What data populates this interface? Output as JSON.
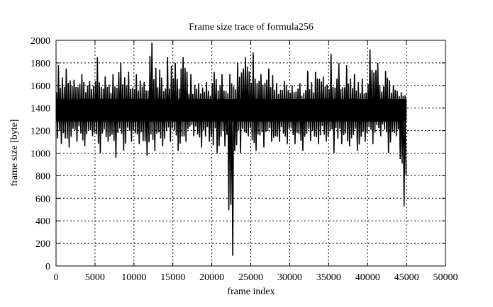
{
  "chart_data": {
    "type": "line",
    "title": "Frame size trace of formula256",
    "xlabel": "frame index",
    "ylabel": "frame size [byte]",
    "xlim": [
      0,
      50000
    ],
    "ylim": [
      0,
      2000
    ],
    "xticks": [
      0,
      5000,
      10000,
      15000,
      20000,
      25000,
      30000,
      35000,
      40000,
      45000,
      50000
    ],
    "yticks": [
      0,
      200,
      400,
      600,
      800,
      1000,
      1200,
      1400,
      1600,
      1800,
      2000
    ],
    "grid": true,
    "line_color": "#000000",
    "bin_size_frames": 1000,
    "envelope_bins_start": [
      0,
      1000,
      2000,
      3000,
      4000,
      5000,
      6000,
      7000,
      8000,
      9000,
      10000,
      11000,
      12000,
      13000,
      14000,
      15000,
      16000,
      17000,
      18000,
      19000,
      20000,
      21000,
      22000,
      23000,
      24000,
      25000,
      26000,
      27000,
      28000,
      29000,
      30000,
      31000,
      32000,
      33000,
      34000,
      35000,
      36000,
      37000,
      38000,
      39000,
      40000,
      41000,
      42000,
      43000,
      44000
    ],
    "envelope_max": [
      1780,
      1750,
      1650,
      1700,
      1640,
      1850,
      1680,
      1700,
      1800,
      1720,
      1700,
      1630,
      1980,
      1740,
      1850,
      1800,
      1850,
      1700,
      1620,
      1630,
      1720,
      1700,
      1700,
      1800,
      1850,
      1890,
      1700,
      1750,
      1620,
      1640,
      1600,
      1620,
      1730,
      1720,
      1680,
      1880,
      1800,
      1780,
      1700,
      1660,
      1920,
      1800,
      1730,
      1600,
      1540
    ],
    "envelope_min": [
      1080,
      1050,
      1100,
      1060,
      1150,
      1000,
      1100,
      960,
      1020,
      1100,
      1080,
      980,
      1020,
      1060,
      1100,
      1020,
      1100,
      1150,
      1050,
      1100,
      1000,
      1060,
      90,
      1000,
      1150,
      1020,
      1050,
      1100,
      1100,
      1080,
      1080,
      1020,
      1110,
      1080,
      1100,
      1000,
      1080,
      1060,
      1020,
      1100,
      1080,
      1150,
      1000,
      1150,
      530
    ],
    "typical_band": [
      1280,
      1480
    ]
  }
}
